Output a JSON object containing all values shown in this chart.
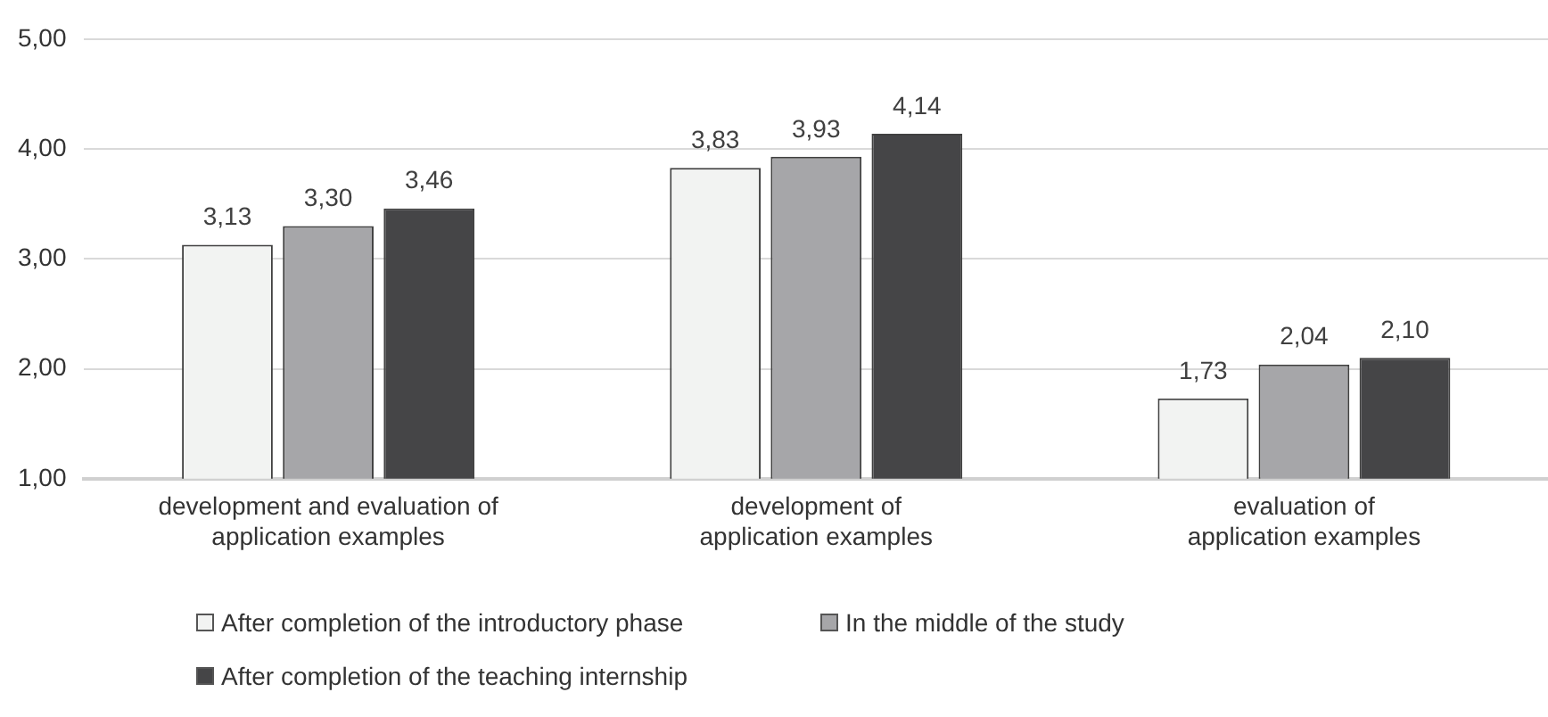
{
  "chart_data": {
    "type": "bar",
    "categories": [
      "development and evaluation of\napplication examples",
      "development of\napplication examples",
      "evaluation of\napplication examples"
    ],
    "series": [
      {
        "name": "After completion of the introductory phase",
        "color": "#f2f3f2",
        "values": [
          3.13,
          3.83,
          1.73
        ],
        "value_labels": [
          "3,13",
          "3,83",
          "1,73"
        ]
      },
      {
        "name": "In the middle of the study",
        "color": "#a6a6a9",
        "values": [
          3.3,
          3.93,
          2.04
        ],
        "value_labels": [
          "3,30",
          "3,93",
          "2,04"
        ]
      },
      {
        "name": "After completion of the teaching internship",
        "color": "#454547",
        "values": [
          3.46,
          4.14,
          2.1
        ],
        "value_labels": [
          "3,46",
          "4,14",
          "2,10"
        ]
      }
    ],
    "ylim": [
      1,
      5
    ],
    "yticks": [
      {
        "value": 1,
        "label": "1,00"
      },
      {
        "value": 2,
        "label": "2,00"
      },
      {
        "value": 3,
        "label": "3,00"
      },
      {
        "value": 4,
        "label": "4,00"
      },
      {
        "value": 5,
        "label": "5,00"
      }
    ],
    "grid": "y",
    "legend": "bottom"
  }
}
